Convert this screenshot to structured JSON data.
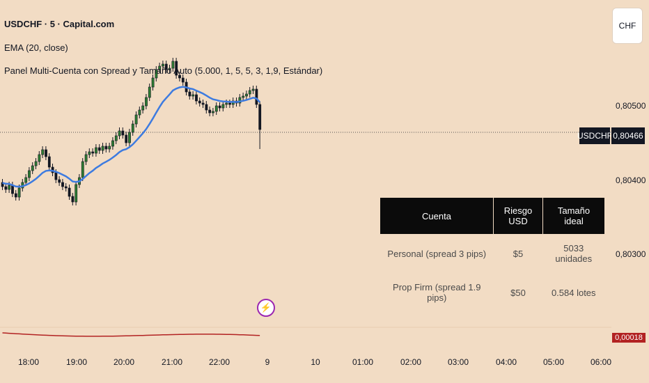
{
  "legend": {
    "symbol_line": "USDCHF · 5 · Capital.com",
    "ema_line": "EMA (20, close)",
    "panel_line": "Panel Multi-Cuenta con Spread y Tamaño Auto (5.000, 1, 5, 5, 3, 1,9, Estándar)"
  },
  "currency_button": "CHF",
  "price_axis": {
    "labels": [
      "0,80500",
      "0,80400",
      "0,80300"
    ],
    "symbol_tag": "USDCHF",
    "current_price": "0,80466",
    "oscillator_value": "0,00018"
  },
  "time_axis": [
    "18:00",
    "19:00",
    "20:00",
    "21:00",
    "22:00",
    "9",
    "10",
    "01:00",
    "02:00",
    "03:00",
    "04:00",
    "05:00",
    "06:00"
  ],
  "panel": {
    "headers": [
      "Cuenta",
      "Riesgo USD",
      "Tamaño ideal"
    ],
    "rows": [
      [
        "Personal (spread 3 pips)",
        "$5",
        "5033 unidades"
      ],
      [
        "Prop Firm (spread 1.9 pips)",
        "$50",
        "0.584 lotes"
      ]
    ]
  },
  "icons": {
    "event_marker": "lightning-icon"
  },
  "colors": {
    "background": "#f2dcc4",
    "ema": "#3d7be0",
    "up": "#2e7d32",
    "down": "#131722",
    "oscillator": "#b22222"
  },
  "chart_data": {
    "type": "candlestick",
    "ema_period": 20,
    "y_axis_ticks": [
      0.805,
      0.804,
      0.803
    ],
    "current_price": 0.80466
  }
}
